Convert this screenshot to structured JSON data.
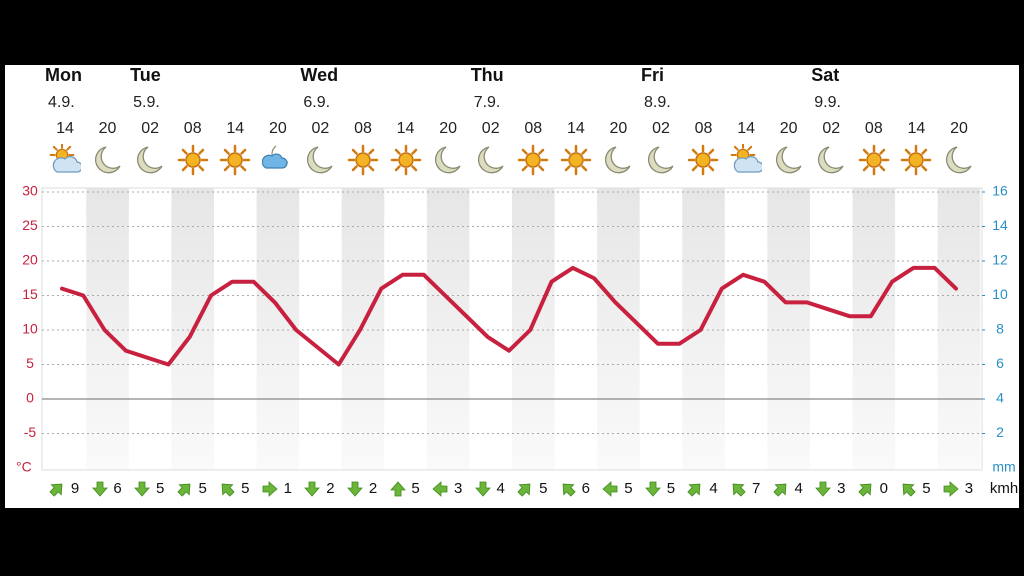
{
  "chart_data": {
    "type": "line",
    "values": [
      16,
      15,
      10,
      7,
      6,
      5,
      9,
      15,
      17,
      17,
      14,
      10,
      7.5,
      5,
      10,
      16,
      18,
      18,
      15,
      12,
      9,
      7,
      10,
      17,
      19,
      17.5,
      14,
      11,
      8,
      8,
      10,
      16,
      18,
      17,
      14,
      14,
      13,
      12,
      12,
      17,
      19,
      19,
      16
    ],
    "color": "#c8213f",
    "ylim": [
      -10,
      30
    ],
    "yticks": [
      30,
      25,
      20,
      15,
      10,
      5,
      0,
      -5
    ],
    "y_unit": "°C",
    "y2lim": [
      0,
      16
    ],
    "y2ticks": [
      16,
      14,
      12,
      10,
      8,
      6,
      4,
      2
    ],
    "y2_unit": "mm",
    "grid": true
  },
  "forecast": {
    "days": [
      {
        "name": "Mon",
        "date": "4.9."
      },
      {
        "name": "Tue",
        "date": "5.9."
      },
      {
        "name": "Wed",
        "date": "6.9."
      },
      {
        "name": "Thu",
        "date": "7.9."
      },
      {
        "name": "Fri",
        "date": "8.9."
      },
      {
        "name": "Sat",
        "date": "9.9."
      }
    ],
    "hours": [
      "14",
      "20",
      "02",
      "08",
      "14",
      "20",
      "02",
      "08",
      "14",
      "20",
      "02",
      "08",
      "14",
      "20",
      "02",
      "08",
      "14",
      "20",
      "02",
      "08",
      "14",
      "20"
    ],
    "wind": [
      9,
      6,
      5,
      5,
      5,
      1,
      2,
      2,
      5,
      3,
      4,
      5,
      6,
      5,
      5,
      4,
      7,
      4,
      3,
      0,
      5,
      3
    ],
    "wind_unit": "kmh"
  }
}
